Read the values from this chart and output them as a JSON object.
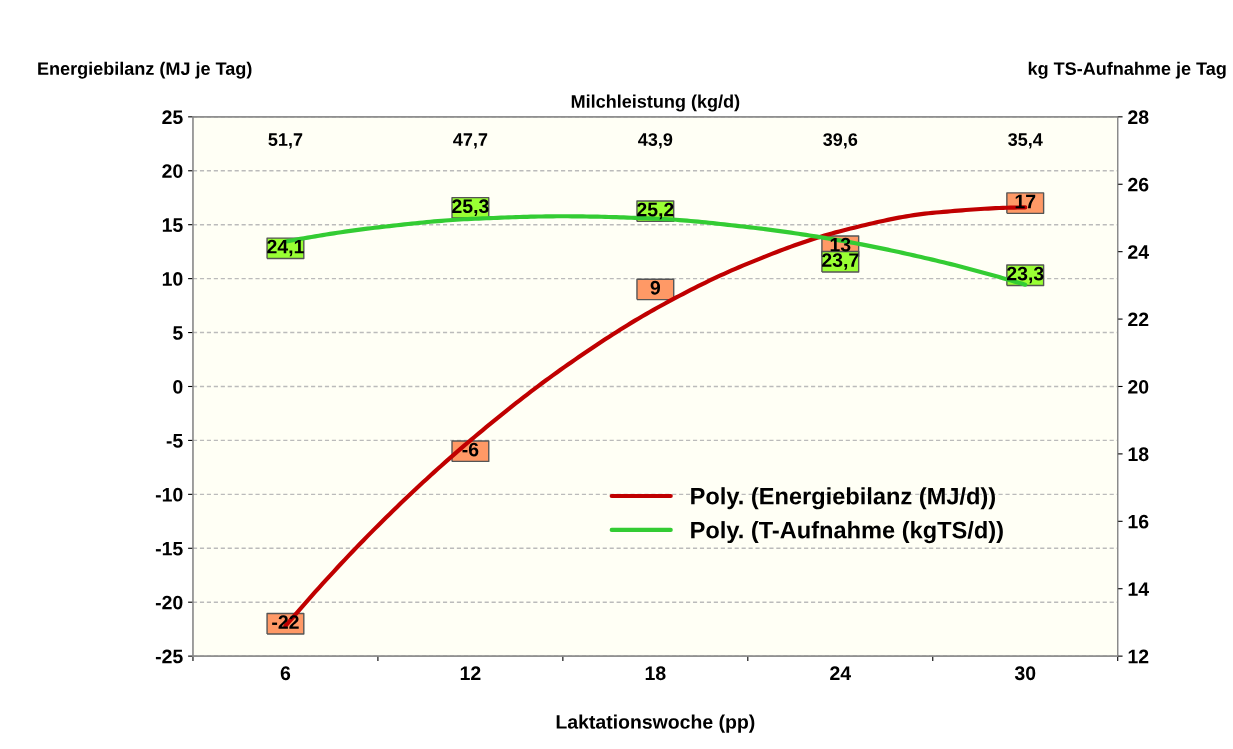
{
  "chart_data": {
    "type": "line",
    "xlabel": "Laktationswoche (pp)",
    "ylabel": "Energiebilanz (MJ je Tag)",
    "y2label": "kg TS-Aufnahme je Tag",
    "annotations": [
      "Milchleistung (kg/d)",
      "51,7",
      "47,7",
      "43,9",
      "39,6",
      "35,4"
    ],
    "x": [
      6,
      12,
      18,
      24,
      30
    ],
    "xlim": [
      3,
      33
    ],
    "xticks": [
      {
        "value": 3,
        "label": null
      },
      6,
      {
        "value": 9,
        "label": null
      },
      12,
      {
        "value": 15,
        "label": null
      },
      18,
      {
        "value": 21,
        "label": null
      },
      24,
      {
        "value": 27,
        "label": null
      },
      30,
      {
        "value": 33,
        "label": null
      }
    ],
    "ylim": [
      -25,
      25
    ],
    "yticks": [
      -25,
      -20,
      -15,
      -10,
      -5,
      0,
      5,
      10,
      15,
      20,
      25
    ],
    "y2lim": [
      12,
      28
    ],
    "y2ticks": [
      12,
      14,
      16,
      18,
      20,
      22,
      24,
      26,
      28
    ],
    "grid": "y",
    "legend": "lower right",
    "series": [
      {
        "type": "scatter",
        "marker": "square",
        "color": "#ff9966",
        "values": [
          -22,
          -6,
          9,
          13,
          17
        ],
        "value_labels": [
          "-22",
          "-6",
          "9",
          "13",
          "17"
        ]
      },
      {
        "type": "scatter",
        "marker": "square",
        "axis": "y2",
        "color": "#99ff33",
        "values": [
          24.1,
          25.3,
          25.2,
          23.7,
          23.3
        ],
        "value_labels": [
          "24,1",
          "25,3",
          "25,2",
          "23,7",
          "23,3"
        ]
      },
      {
        "name": "Poly. (Energiebilanz (MJ/d))",
        "color": "#c00000",
        "x": [
          6,
          9,
          12,
          15,
          18,
          21,
          24,
          27,
          30
        ],
        "values": [
          -22.2,
          -12.9,
          -5,
          1.7,
          7.2,
          11.4,
          14.4,
          16.1,
          16.6
        ]
      },
      {
        "name": "Poly. (T-Aufnahme (kgTS/d))",
        "axis": "y2",
        "color": "#33cc33",
        "x": [
          6,
          9,
          12,
          15,
          18,
          21,
          24,
          27,
          30
        ],
        "values": [
          24.3,
          24.72,
          24.97,
          25.05,
          24.98,
          24.73,
          24.33,
          23.76,
          23.02
        ]
      }
    ]
  }
}
